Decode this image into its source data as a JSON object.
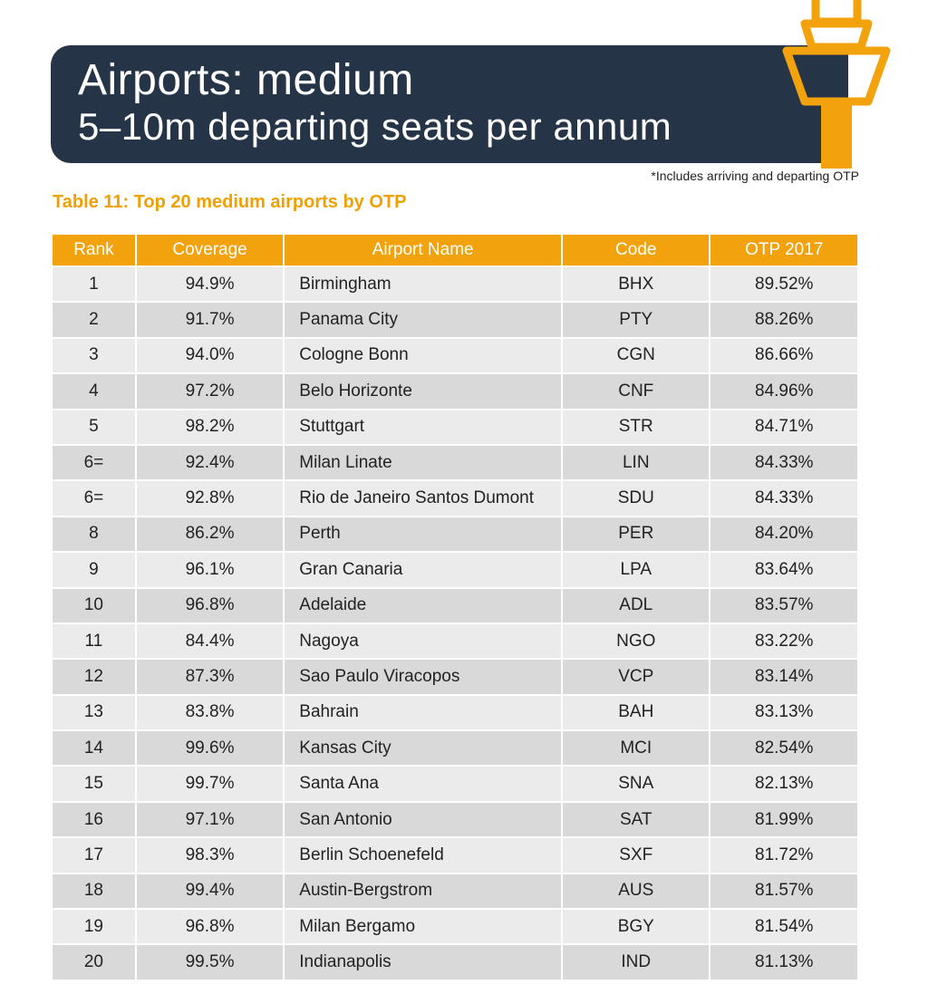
{
  "banner": {
    "title_line1": "Airports: medium",
    "title_line2": "5–10m departing seats per annum"
  },
  "icon": "control-tower-icon",
  "colors": {
    "navy": "#253446",
    "accent": "#F2A20C"
  },
  "footnote": "*Includes arriving and departing OTP",
  "table": {
    "title": "Table 11: Top 20 medium airports by OTP",
    "headers": [
      "Rank",
      "Coverage",
      "Airport Name",
      "Code",
      "OTP 2017"
    ],
    "rows": [
      [
        "1",
        "94.9%",
        "Birmingham",
        "BHX",
        "89.52%"
      ],
      [
        "2",
        "91.7%",
        "Panama City",
        "PTY",
        "88.26%"
      ],
      [
        "3",
        "94.0%",
        "Cologne Bonn",
        "CGN",
        "86.66%"
      ],
      [
        "4",
        "97.2%",
        "Belo Horizonte",
        "CNF",
        "84.96%"
      ],
      [
        "5",
        "98.2%",
        "Stuttgart",
        "STR",
        "84.71%"
      ],
      [
        "6=",
        "92.4%",
        "Milan Linate",
        "LIN",
        "84.33%"
      ],
      [
        "6=",
        "92.8%",
        "Rio de Janeiro Santos Dumont",
        "SDU",
        "84.33%"
      ],
      [
        "8",
        "86.2%",
        "Perth",
        "PER",
        "84.20%"
      ],
      [
        "9",
        "96.1%",
        "Gran Canaria",
        "LPA",
        "83.64%"
      ],
      [
        "10",
        "96.8%",
        "Adelaide",
        "ADL",
        "83.57%"
      ],
      [
        "11",
        "84.4%",
        "Nagoya",
        "NGO",
        "83.22%"
      ],
      [
        "12",
        "87.3%",
        "Sao Paulo Viracopos",
        "VCP",
        "83.14%"
      ],
      [
        "13",
        "83.8%",
        "Bahrain",
        "BAH",
        "83.13%"
      ],
      [
        "14",
        "99.6%",
        "Kansas City",
        "MCI",
        "82.54%"
      ],
      [
        "15",
        "99.7%",
        "Santa Ana",
        "SNA",
        "82.13%"
      ],
      [
        "16",
        "97.1%",
        "San Antonio",
        "SAT",
        "81.99%"
      ],
      [
        "17",
        "98.3%",
        "Berlin Schoenefeld",
        "SXF",
        "81.72%"
      ],
      [
        "18",
        "99.4%",
        "Austin-Bergstrom",
        "AUS",
        "81.57%"
      ],
      [
        "19",
        "96.8%",
        "Milan Bergamo",
        "BGY",
        "81.54%"
      ],
      [
        "20",
        "99.5%",
        "Indianapolis",
        "IND",
        "81.13%"
      ]
    ]
  }
}
